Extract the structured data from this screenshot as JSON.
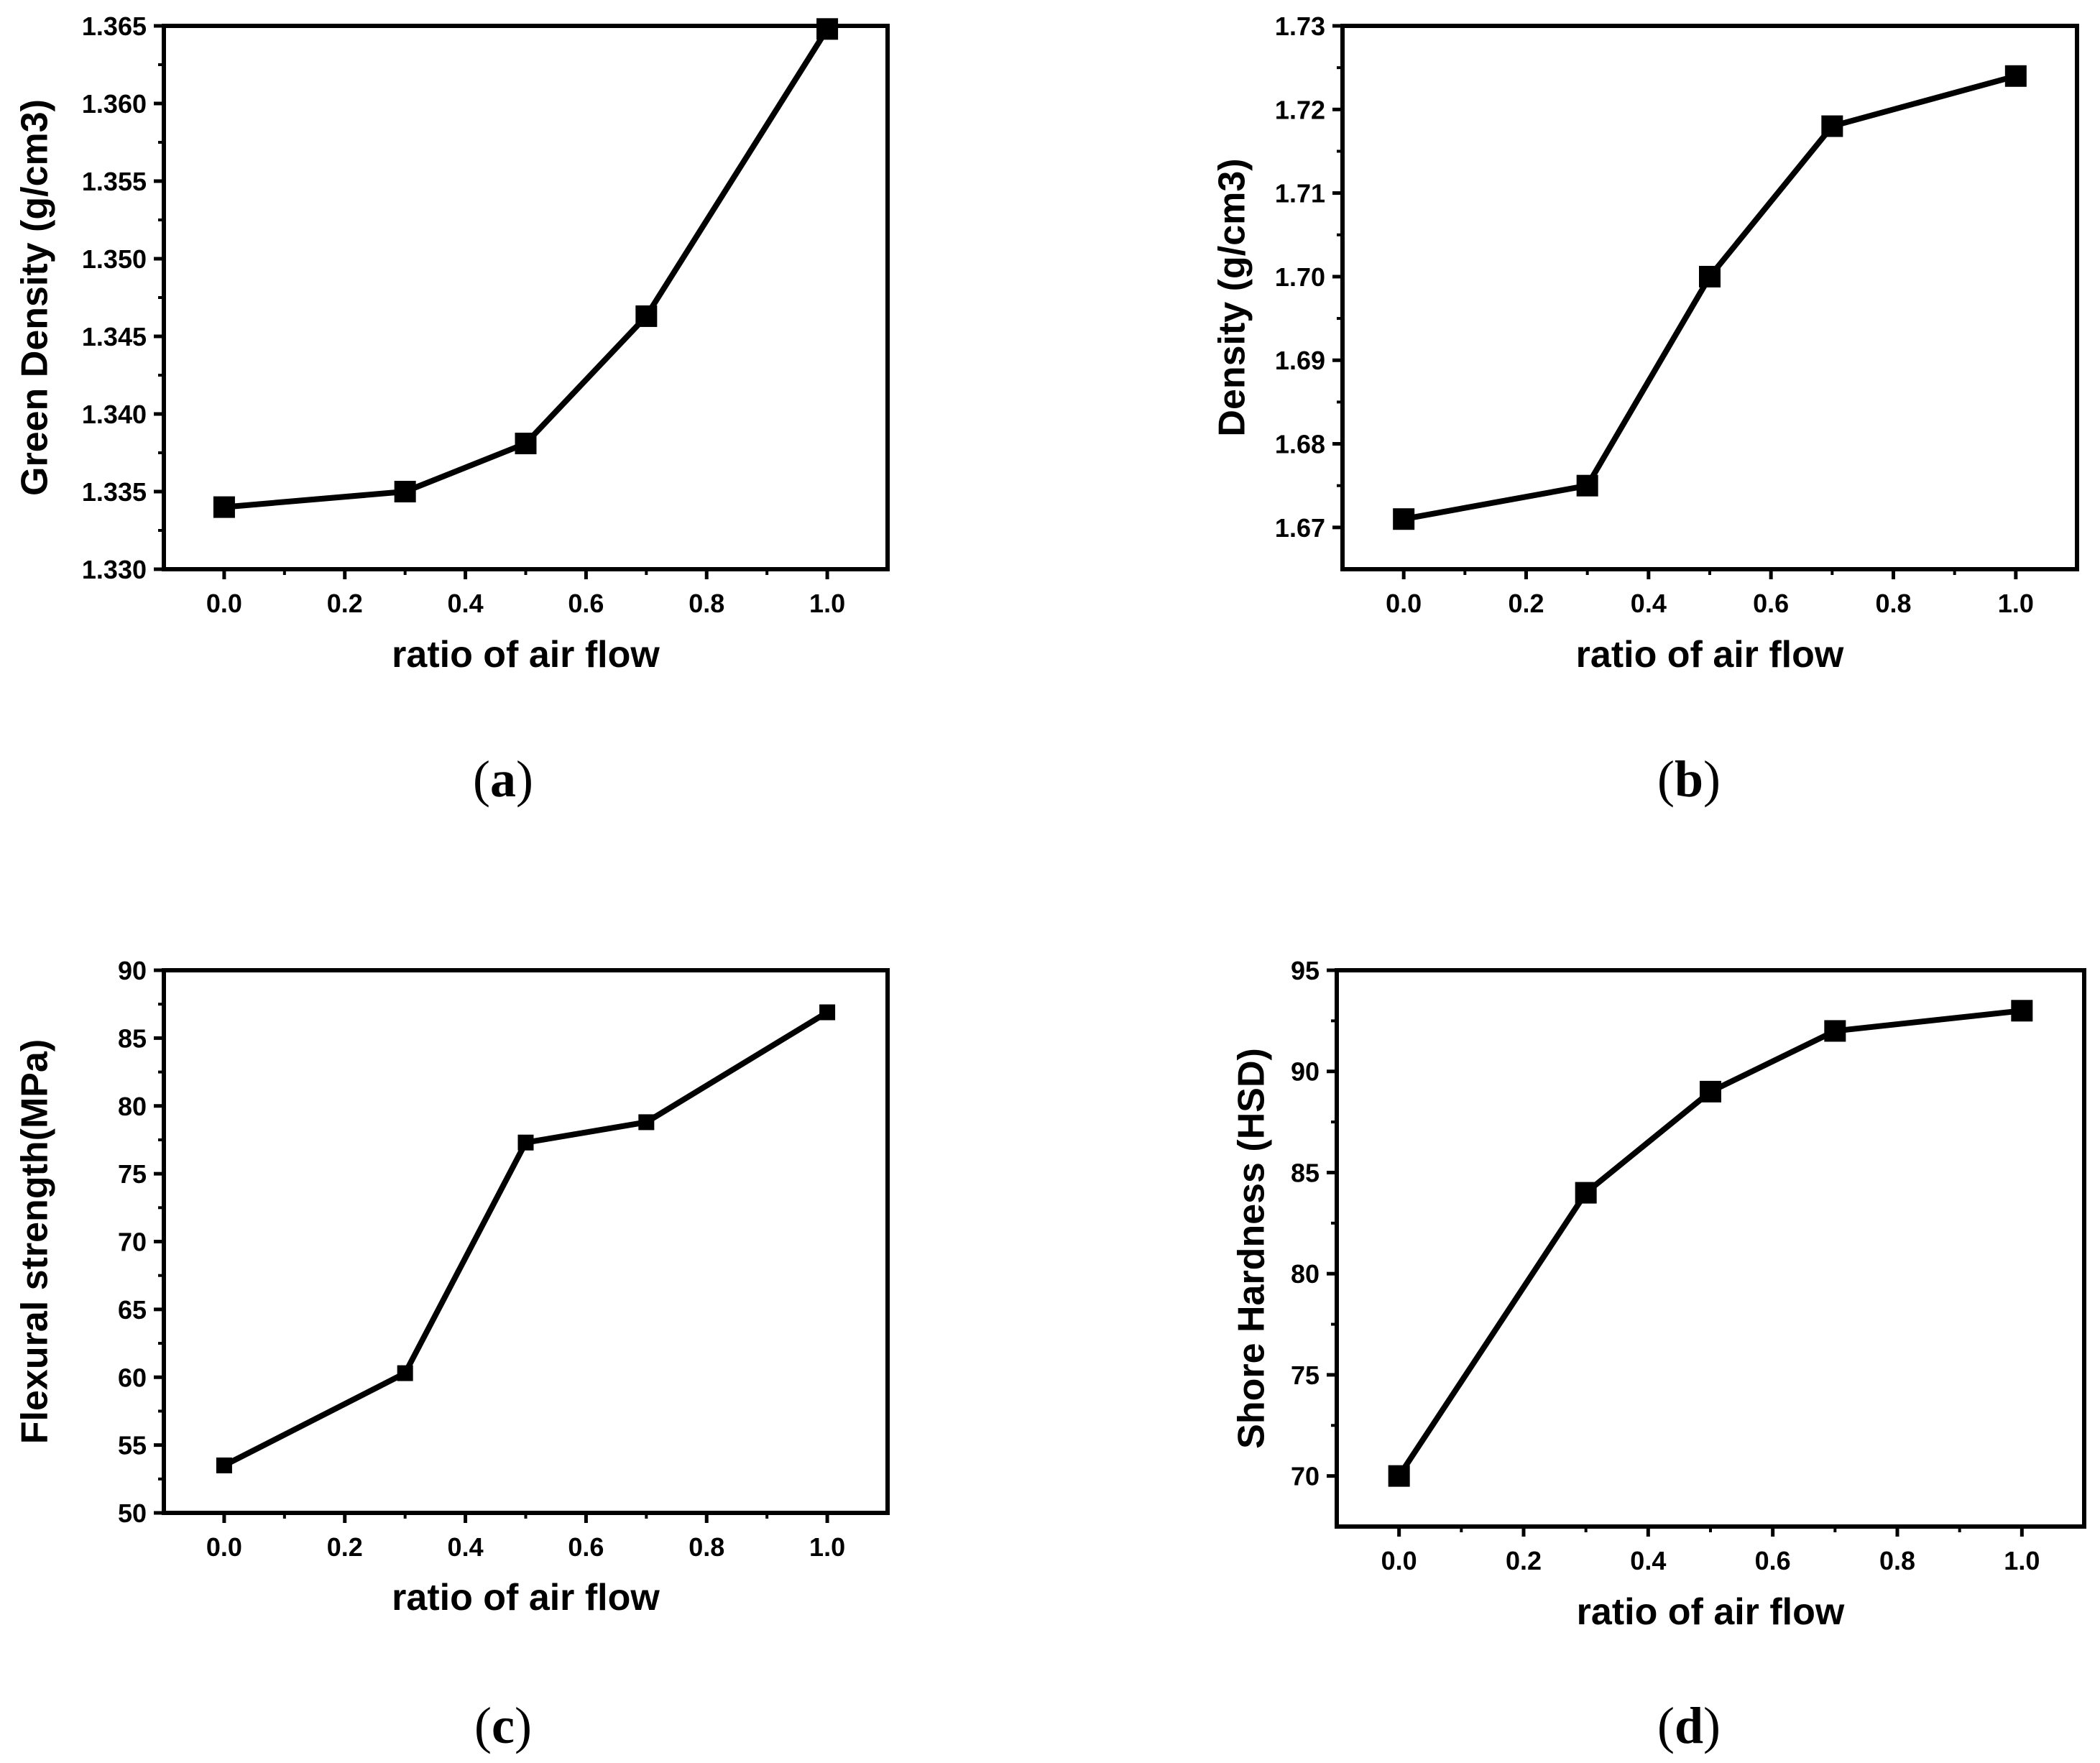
{
  "chart_data": [
    {
      "panel": "a",
      "caption": "(a)",
      "caption_open": "(",
      "caption_letter": "a",
      "caption_close": ")",
      "type": "line",
      "marker": "square",
      "title": "",
      "xlabel": "ratio of air flow",
      "ylabel": "Green Density (g/cm3)",
      "xlim": [
        -0.1,
        1.1
      ],
      "ylim": [
        1.33,
        1.365
      ],
      "grid": false,
      "xticks": [
        0.0,
        0.2,
        0.4,
        0.6,
        0.8,
        1.0
      ],
      "xtick_labels": [
        "0.0",
        "0.2",
        "0.4",
        "0.6",
        "0.8",
        "1.0"
      ],
      "yticks": [
        1.33,
        1.335,
        1.34,
        1.345,
        1.35,
        1.355,
        1.36,
        1.365
      ],
      "ytick_labels": [
        "1.330",
        "1.335",
        "1.340",
        "1.345",
        "1.350",
        "1.355",
        "1.360",
        "1.365"
      ],
      "series": [
        {
          "name": "Green Density",
          "x": [
            0.0,
            0.3,
            0.5,
            0.7,
            1.0
          ],
          "y": [
            1.334,
            1.335,
            1.3381,
            1.3463,
            1.3648
          ]
        }
      ]
    },
    {
      "panel": "b",
      "caption": "(b)",
      "caption_open": "(",
      "caption_letter": "b",
      "caption_close": ")",
      "type": "line",
      "marker": "square",
      "title": "",
      "xlabel": "ratio of air flow",
      "ylabel": "Density (g/cm3)",
      "xlim": [
        -0.1,
        1.1
      ],
      "ylim": [
        1.665,
        1.73
      ],
      "grid": false,
      "xticks": [
        0.0,
        0.2,
        0.4,
        0.6,
        0.8,
        1.0
      ],
      "xtick_labels": [
        "0.0",
        "0.2",
        "0.4",
        "0.6",
        "0.8",
        "1.0"
      ],
      "yticks": [
        1.67,
        1.68,
        1.69,
        1.7,
        1.71,
        1.72,
        1.73
      ],
      "ytick_labels": [
        "1.67",
        "1.68",
        "1.69",
        "1.70",
        "1.71",
        "1.72",
        "1.73"
      ],
      "series": [
        {
          "name": "Density",
          "x": [
            0.0,
            0.3,
            0.5,
            0.7,
            1.0
          ],
          "y": [
            1.671,
            1.675,
            1.7,
            1.718,
            1.724
          ]
        }
      ]
    },
    {
      "panel": "c",
      "caption": "(c)",
      "caption_open": "(",
      "caption_letter": "c",
      "caption_close": ")",
      "type": "line",
      "marker": "square",
      "title": "",
      "xlabel": "ratio of air flow",
      "ylabel": "Flexural strength(MPa)",
      "xlim": [
        -0.1,
        1.1
      ],
      "ylim": [
        50,
        90
      ],
      "grid": false,
      "xticks": [
        0.0,
        0.2,
        0.4,
        0.6,
        0.8,
        1.0
      ],
      "xtick_labels": [
        "0.0",
        "0.2",
        "0.4",
        "0.6",
        "0.8",
        "1.0"
      ],
      "yticks": [
        50,
        55,
        60,
        65,
        70,
        75,
        80,
        85,
        90
      ],
      "ytick_labels": [
        "50",
        "55",
        "60",
        "65",
        "70",
        "75",
        "80",
        "85",
        "90"
      ],
      "series": [
        {
          "name": "Flexural strength",
          "x": [
            0.0,
            0.3,
            0.5,
            0.7,
            1.0
          ],
          "y": [
            53.5,
            60.3,
            77.3,
            78.8,
            86.9
          ]
        }
      ]
    },
    {
      "panel": "d",
      "caption": "(d)",
      "caption_open": "(",
      "caption_letter": "d",
      "caption_close": ")",
      "type": "line",
      "marker": "square",
      "title": "",
      "xlabel": "ratio of air flow",
      "ylabel": "Shore Hardness (HSD)",
      "xlim": [
        -0.1,
        1.1
      ],
      "ylim": [
        67.5,
        95
      ],
      "grid": false,
      "xticks": [
        0.0,
        0.2,
        0.4,
        0.6,
        0.8,
        1.0
      ],
      "xtick_labels": [
        "0.0",
        "0.2",
        "0.4",
        "0.6",
        "0.8",
        "1.0"
      ],
      "yticks": [
        70,
        75,
        80,
        85,
        90,
        95
      ],
      "ytick_labels": [
        "70",
        "75",
        "80",
        "85",
        "90",
        "95"
      ],
      "series": [
        {
          "name": "Shore Hardness",
          "x": [
            0.0,
            0.3,
            0.5,
            0.7,
            1.0
          ],
          "y": [
            70,
            84,
            89,
            92,
            93
          ]
        }
      ]
    }
  ]
}
